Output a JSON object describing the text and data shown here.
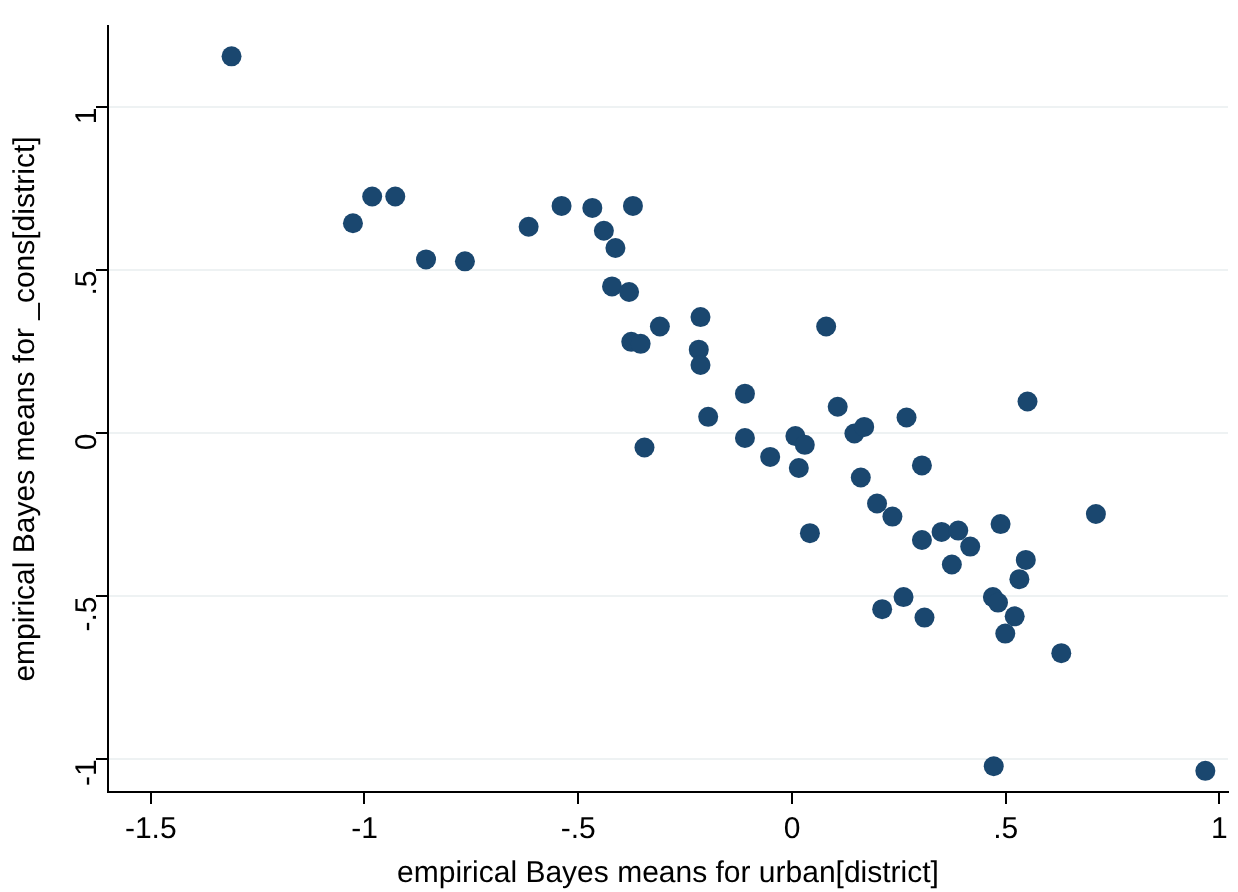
{
  "chart_data": {
    "type": "scatter",
    "xlabel": "empirical Bayes means for urban[district]",
    "ylabel": "empirical Bayes means for _cons[district]",
    "xlim": [
      -1.6,
      1.02
    ],
    "ylim": [
      -1.1,
      1.25
    ],
    "xticks": [
      {
        "value": -1.5,
        "label": "-1.5"
      },
      {
        "value": -1,
        "label": "-1"
      },
      {
        "value": -0.5,
        "label": "-.5"
      },
      {
        "value": 0,
        "label": "0"
      },
      {
        "value": 0.5,
        "label": ".5"
      },
      {
        "value": 1,
        "label": "1"
      }
    ],
    "yticks": [
      {
        "value": -1,
        "label": "-1"
      },
      {
        "value": -0.5,
        "label": "-.5"
      },
      {
        "value": 0,
        "label": "0"
      },
      {
        "value": 0.5,
        "label": ".5"
      },
      {
        "value": 1,
        "label": "1"
      }
    ],
    "grid": "y",
    "marker": "circle",
    "legend": false,
    "series": [
      {
        "color": "#1a476f",
        "x": [
          -1.311,
          -1.027,
          -0.982,
          -0.928,
          -0.856,
          -0.765,
          -0.616,
          -0.539,
          -0.467,
          -0.44,
          -0.413,
          -0.372,
          -0.421,
          -0.381,
          -0.376,
          -0.354,
          -0.309,
          -0.345,
          -0.214,
          -0.218,
          -0.214,
          -0.196,
          -0.11,
          -0.11,
          -0.051,
          0.008,
          0.03,
          0.016,
          0.042,
          0.08,
          0.107,
          0.146,
          0.169,
          0.161,
          0.199,
          0.235,
          0.211,
          0.261,
          0.268,
          0.304,
          0.304,
          0.31,
          0.35,
          0.389,
          0.374,
          0.417,
          0.488,
          0.551,
          0.547,
          0.532,
          0.47,
          0.482,
          0.521,
          0.499,
          0.63,
          0.711,
          0.472,
          0.967
        ],
        "values": [
          1.157,
          0.645,
          0.727,
          0.727,
          0.534,
          0.528,
          0.634,
          0.698,
          0.692,
          0.622,
          0.569,
          0.698,
          0.451,
          0.434,
          0.281,
          0.275,
          0.328,
          -0.043,
          0.357,
          0.257,
          0.21,
          0.051,
          0.122,
          -0.014,
          -0.072,
          -0.008,
          -0.035,
          -0.106,
          -0.306,
          0.328,
          0.082,
          0,
          0.02,
          -0.135,
          -0.215,
          -0.255,
          -0.539,
          -0.502,
          0.049,
          -0.098,
          -0.327,
          -0.565,
          -0.302,
          -0.298,
          -0.402,
          -0.347,
          -0.278,
          0.098,
          -0.388,
          -0.447,
          -0.502,
          -0.519,
          -0.561,
          -0.614,
          -0.674,
          -0.247,
          -1.021,
          -1.035
        ]
      }
    ]
  }
}
